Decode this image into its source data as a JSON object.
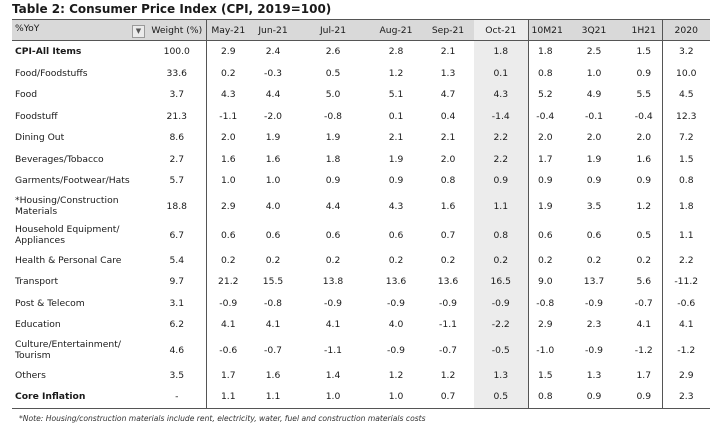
{
  "title": "Table 2: Consumer Price Index (CPI, 2019=100)",
  "headers": [
    "%YoY",
    "Weight (%)",
    "May-21",
    "Jun-21",
    "Jul-21",
    "Aug-21",
    "Sep-21",
    "Oct-21",
    "10M21",
    "3Q21",
    "1H21",
    "2020"
  ],
  "filter_icon": "dropdown-arrow-icon",
  "rows": [
    {
      "label": "CPI-All Items",
      "bold": true,
      "values": [
        "100.0",
        "2.9",
        "2.4",
        "2.6",
        "2.8",
        "2.1",
        "1.8",
        "1.8",
        "2.5",
        "1.5",
        "3.2"
      ]
    },
    {
      "label": "Food/Foodstuffs",
      "values": [
        "33.6",
        "0.2",
        "-0.3",
        "0.5",
        "1.2",
        "1.3",
        "0.1",
        "0.8",
        "1.0",
        "0.9",
        "10.0"
      ]
    },
    {
      "label": "Food",
      "values": [
        "3.7",
        "4.3",
        "4.4",
        "5.0",
        "5.1",
        "4.7",
        "4.3",
        "5.2",
        "4.9",
        "5.5",
        "4.5"
      ]
    },
    {
      "label": "Foodstuff",
      "values": [
        "21.3",
        "-1.1",
        "-2.0",
        "-0.8",
        "0.1",
        "0.4",
        "-1.4",
        "-0.4",
        "-0.1",
        "-0.4",
        "12.3"
      ]
    },
    {
      "label": "Dining Out",
      "values": [
        "8.6",
        "2.0",
        "1.9",
        "1.9",
        "2.1",
        "2.1",
        "2.2",
        "2.0",
        "2.0",
        "2.0",
        "7.2"
      ]
    },
    {
      "label": "Beverages/Tobacco",
      "values": [
        "2.7",
        "1.6",
        "1.6",
        "1.8",
        "1.9",
        "2.0",
        "2.2",
        "1.7",
        "1.9",
        "1.6",
        "1.5"
      ]
    },
    {
      "label": "Garments/Footwear/Hats",
      "values": [
        "5.7",
        "1.0",
        "1.0",
        "0.9",
        "0.9",
        "0.8",
        "0.9",
        "0.9",
        "0.9",
        "0.9",
        "0.8"
      ]
    },
    {
      "label": "*Housing/Construction Materials",
      "tall": true,
      "values": [
        "18.8",
        "2.9",
        "4.0",
        "4.4",
        "4.3",
        "1.6",
        "1.1",
        "1.9",
        "3.5",
        "1.2",
        "1.8"
      ]
    },
    {
      "label": "Household Equipment/ Appliances",
      "tall": true,
      "values": [
        "6.7",
        "0.6",
        "0.6",
        "0.6",
        "0.6",
        "0.7",
        "0.8",
        "0.6",
        "0.6",
        "0.5",
        "1.1"
      ]
    },
    {
      "label": "Health & Personal Care",
      "values": [
        "5.4",
        "0.2",
        "0.2",
        "0.2",
        "0.2",
        "0.2",
        "0.2",
        "0.2",
        "0.2",
        "0.2",
        "2.2"
      ]
    },
    {
      "label": "Transport",
      "values": [
        "9.7",
        "21.2",
        "15.5",
        "13.8",
        "13.6",
        "13.6",
        "16.5",
        "9.0",
        "13.7",
        "5.6",
        "-11.2"
      ]
    },
    {
      "label": "Post & Telecom",
      "values": [
        "3.1",
        "-0.9",
        "-0.8",
        "-0.9",
        "-0.9",
        "-0.9",
        "-0.9",
        "-0.8",
        "-0.9",
        "-0.7",
        "-0.6"
      ]
    },
    {
      "label": "Education",
      "values": [
        "6.2",
        "4.1",
        "4.1",
        "4.1",
        "4.0",
        "-1.1",
        "-2.2",
        "2.9",
        "2.3",
        "4.1",
        "4.1"
      ]
    },
    {
      "label": "Culture/Entertainment/ Tourism",
      "tall": true,
      "values": [
        "4.6",
        "-0.6",
        "-0.7",
        "-1.1",
        "-0.9",
        "-0.7",
        "-0.5",
        "-1.0",
        "-0.9",
        "-1.2",
        "-1.2"
      ]
    },
    {
      "label": "Others",
      "values": [
        "3.5",
        "1.7",
        "1.6",
        "1.4",
        "1.2",
        "1.2",
        "1.3",
        "1.5",
        "1.3",
        "1.7",
        "2.9"
      ]
    },
    {
      "label": "Core Inflation",
      "bold": true,
      "values": [
        "-",
        "1.1",
        "1.1",
        "1.0",
        "1.0",
        "0.7",
        "0.5",
        "0.8",
        "0.9",
        "0.9",
        "2.3"
      ]
    }
  ],
  "note": "*Note: Housing/construction materials include rent, electricity, water, fuel and construction materials costs"
}
